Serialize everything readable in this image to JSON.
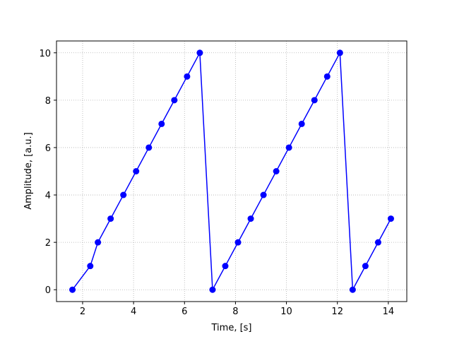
{
  "chart_data": {
    "type": "line",
    "x_label": "Time, [s]",
    "y_label": "Amplitude, [a.u.]",
    "x": [
      1.6,
      2.3,
      2.6,
      3.1,
      3.6,
      4.1,
      4.6,
      5.1,
      5.6,
      6.1,
      6.6,
      7.1,
      7.6,
      8.1,
      8.6,
      9.1,
      9.6,
      10.1,
      10.6,
      11.1,
      11.6,
      12.1,
      12.6,
      13.1,
      13.6,
      14.1
    ],
    "series": [
      {
        "color": "#0000ff",
        "values": [
          0,
          1,
          2,
          3,
          4,
          5,
          6,
          7,
          8,
          9,
          10,
          0,
          1,
          2,
          3,
          4,
          5,
          6,
          7,
          8,
          9,
          10,
          0,
          1,
          2,
          3
        ]
      }
    ],
    "xlim": [
      0.975,
      14.725
    ],
    "ylim": [
      -0.5,
      10.5
    ],
    "xticks": [
      2,
      4,
      6,
      8,
      10,
      12,
      14
    ],
    "yticks": [
      0,
      2,
      4,
      6,
      8,
      10
    ],
    "grid": true
  }
}
